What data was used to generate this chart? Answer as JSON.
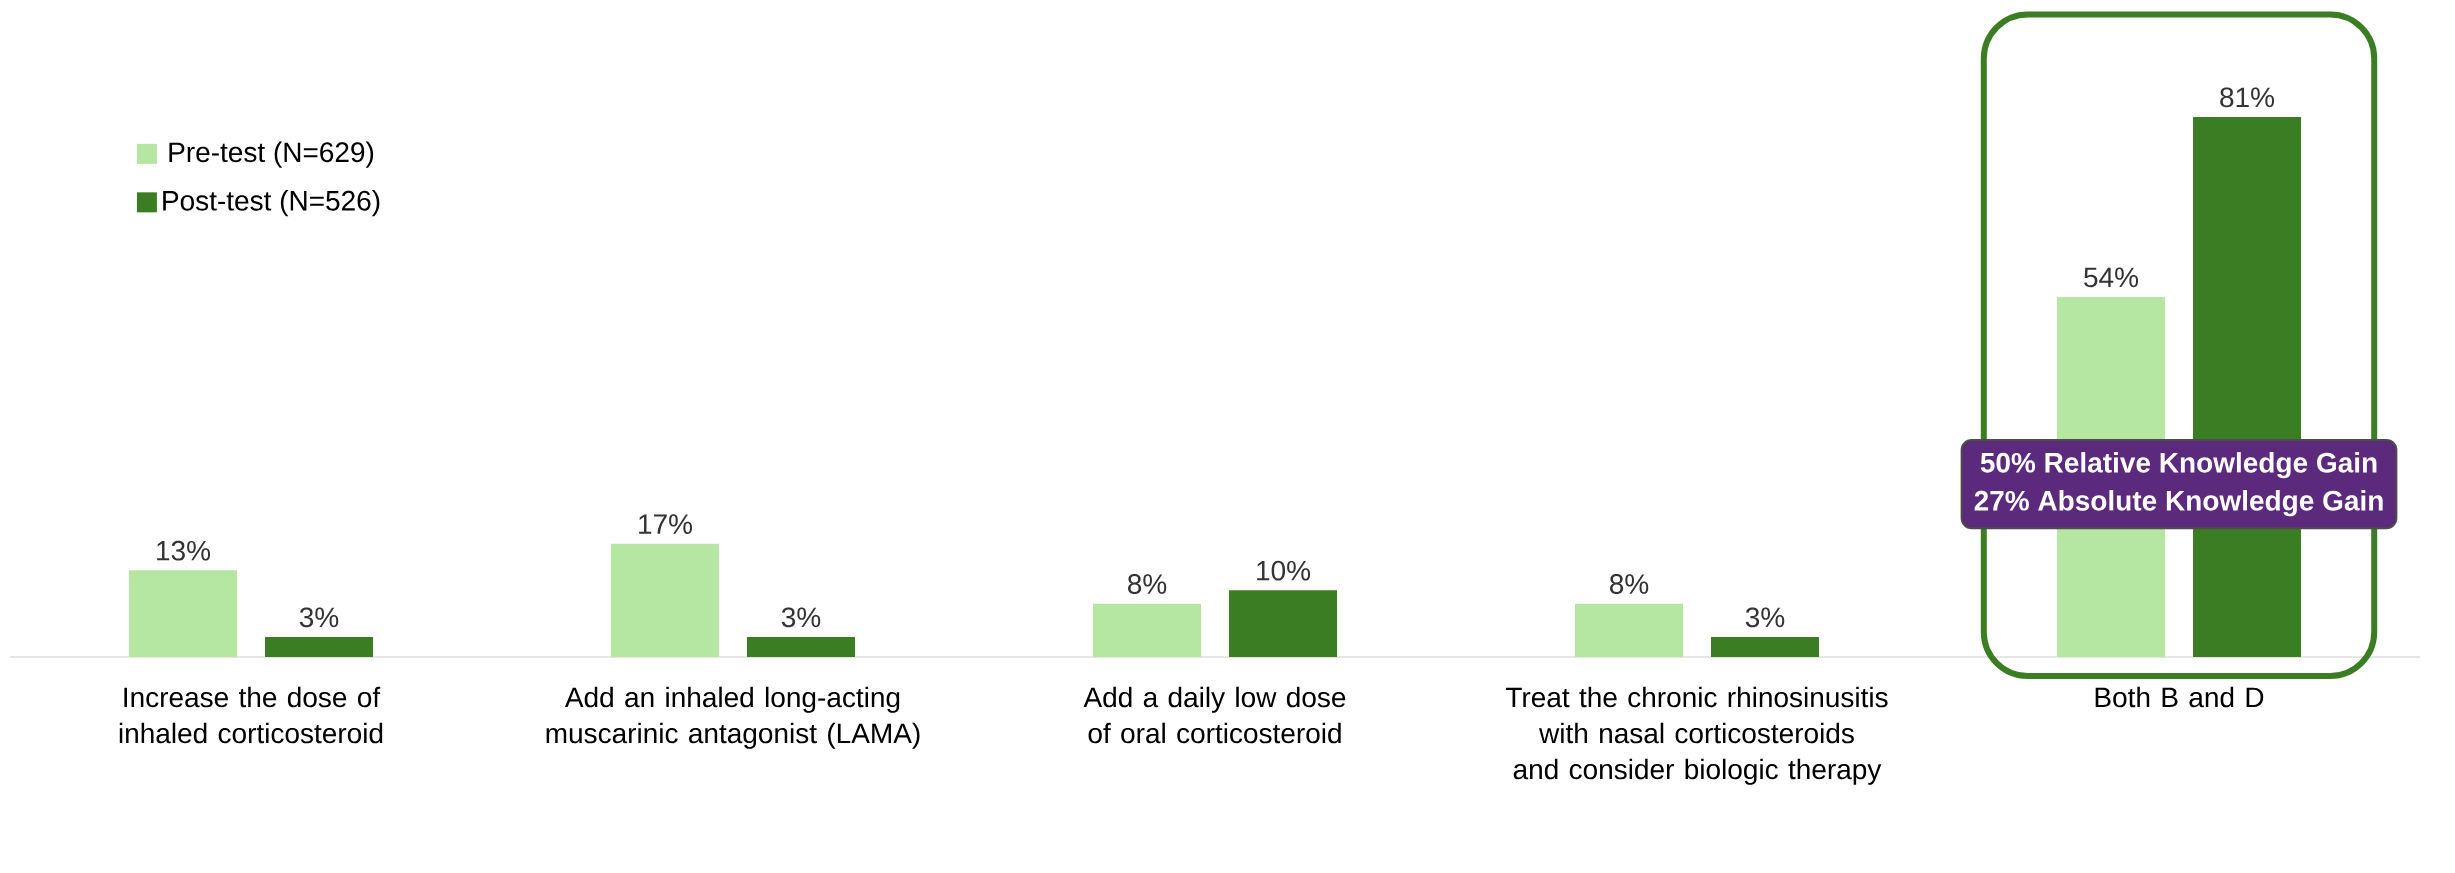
{
  "chart_data": {
    "type": "bar",
    "categories": [
      "Increase the dose of inhaled corticosteroid",
      "Add an inhaled long-acting muscarinic antagonist (LAMA)",
      "Add a daily low dose of oral corticosteroid",
      "Treat the chronic rhinosinusitis with nasal corticosteroids and consider biologic therapy",
      "Both B and D"
    ],
    "series": [
      {
        "name": "Pre-test (N=629)",
        "color": "#b5e6a2",
        "values": [
          13,
          17,
          8,
          8,
          54
        ],
        "value_labels": [
          "13%",
          "17%",
          "8%",
          "8%",
          "54%"
        ]
      },
      {
        "name": "Post-test (N=526)",
        "color": "#3b7d23",
        "values": [
          3,
          3,
          10,
          3,
          81
        ],
        "value_labels": [
          "3%",
          "3%",
          "10%",
          "3%",
          "81%"
        ]
      }
    ],
    "tick_labels": "x",
    "legend": "top left",
    "annotations": [
      "50% Relative Knowledge Gain",
      "27% Absolute Knowledge Gain"
    ]
  }
}
